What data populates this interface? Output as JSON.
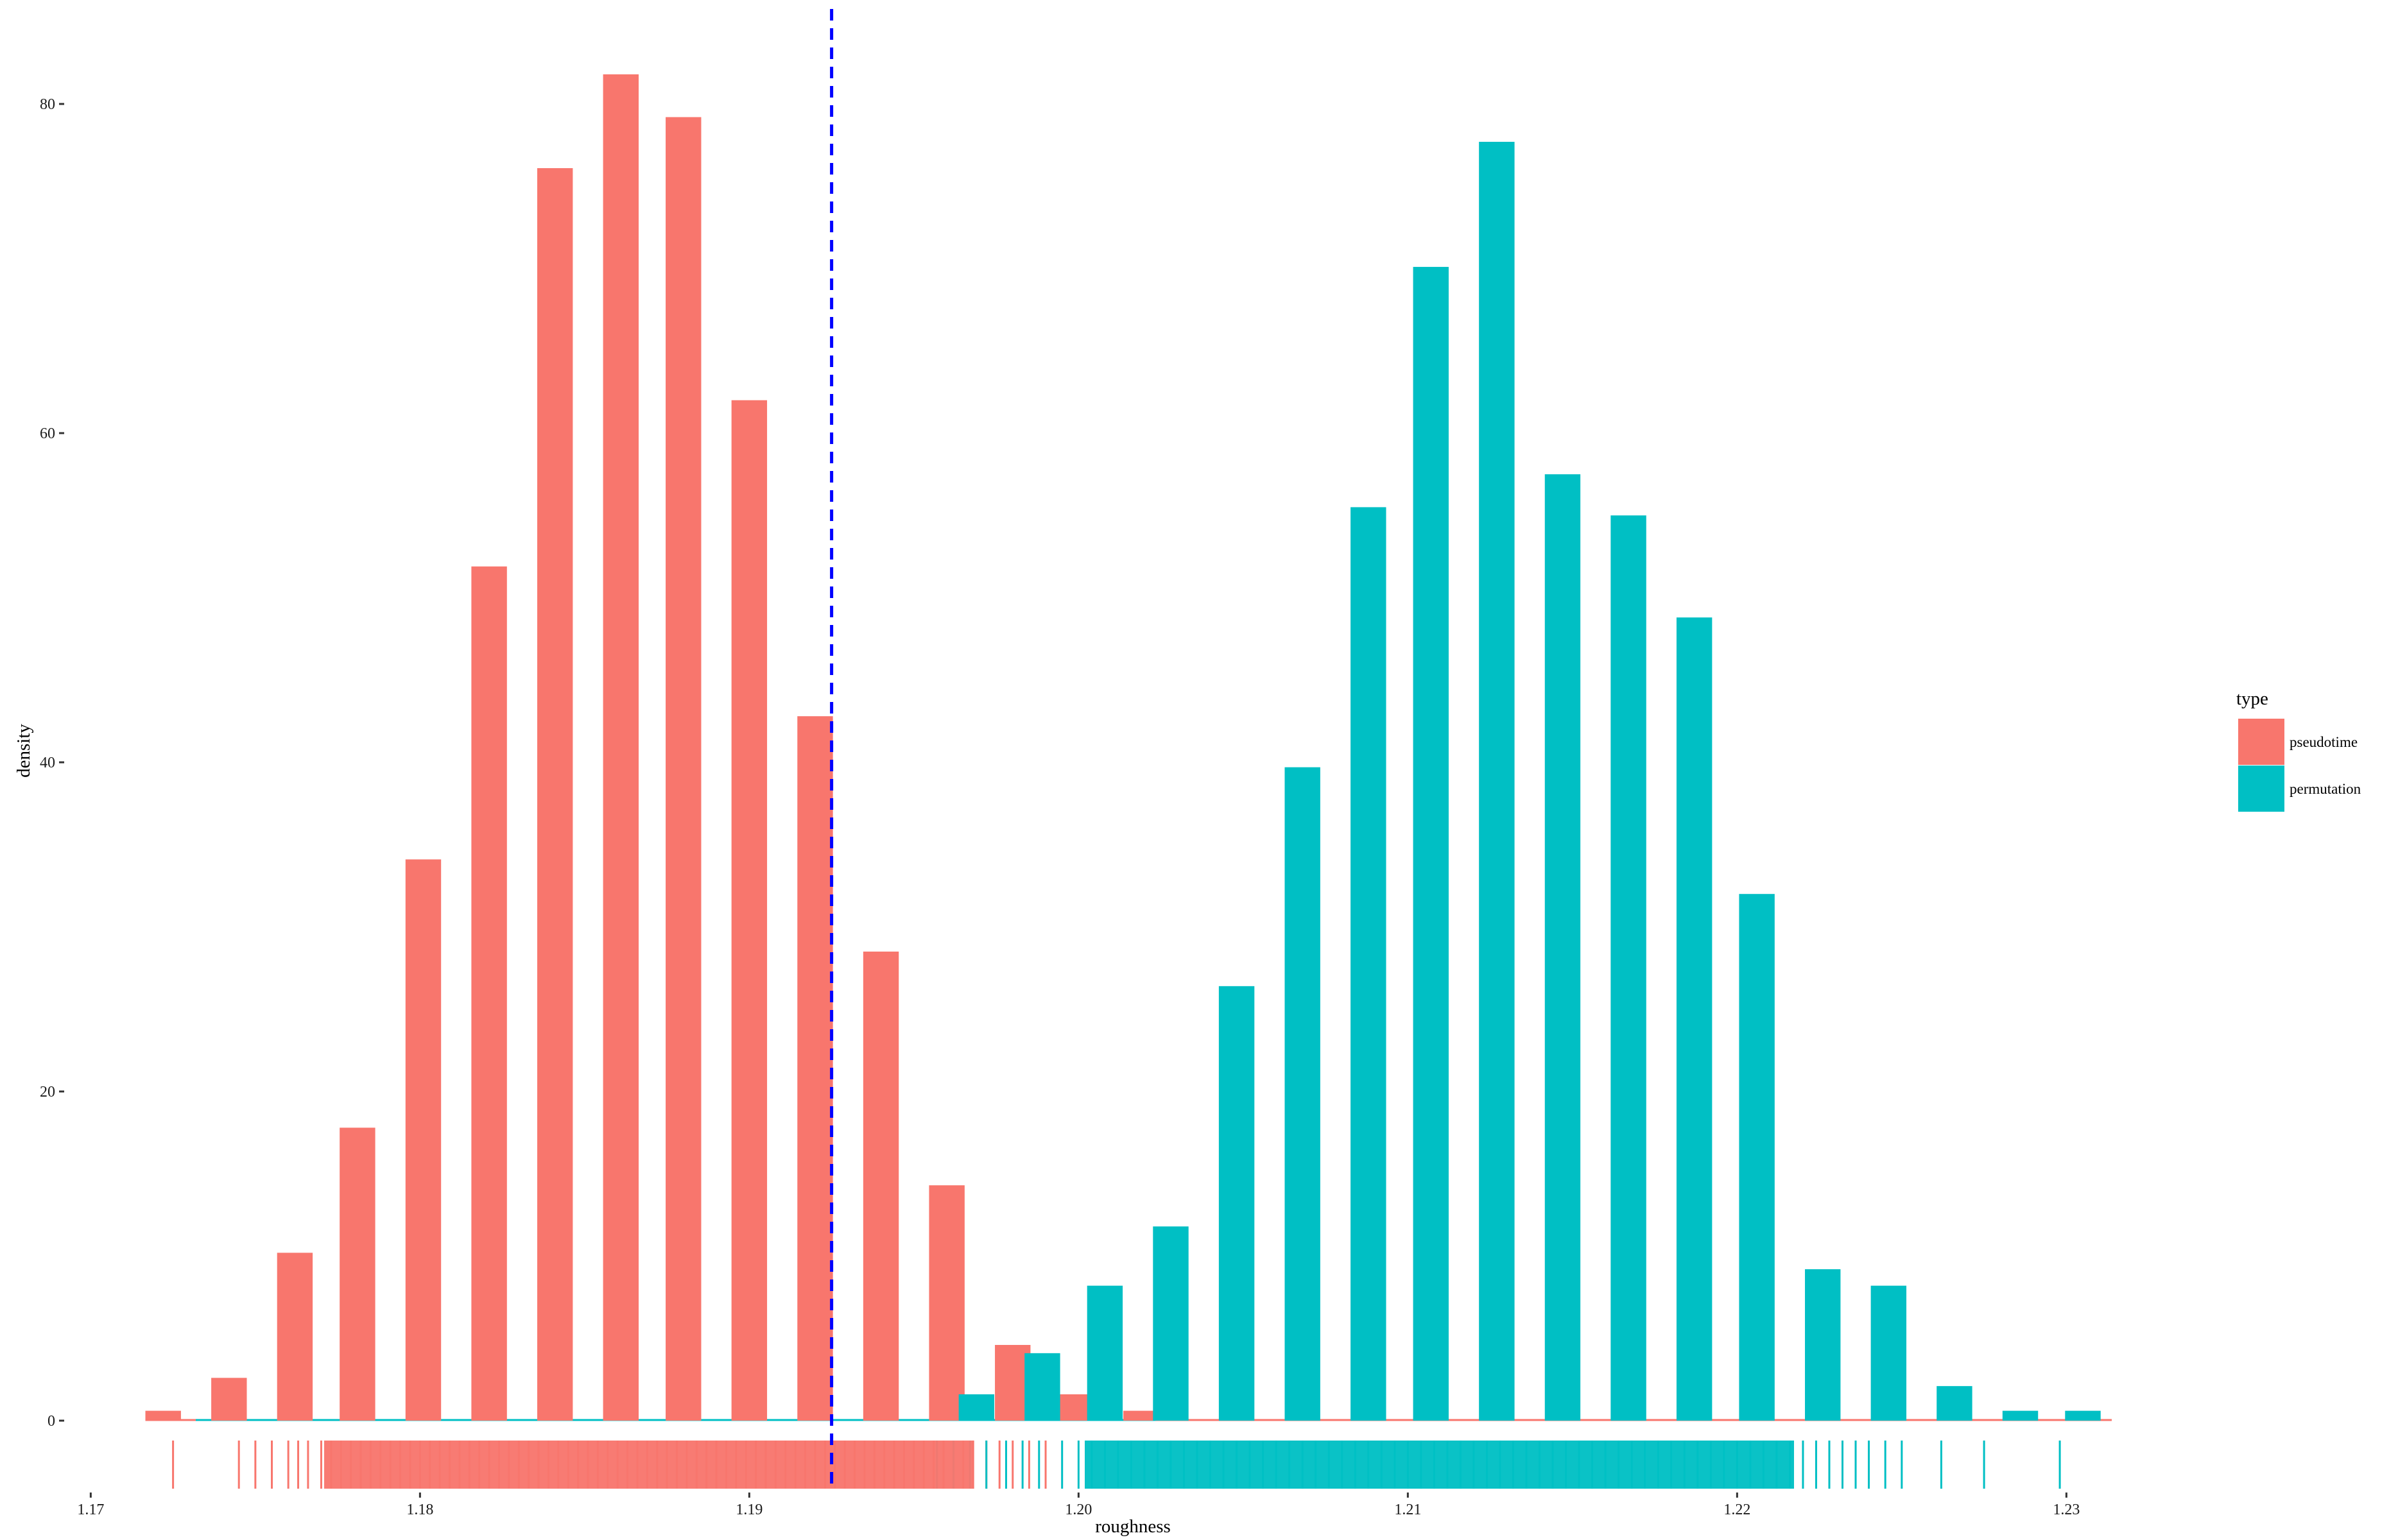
{
  "chart_data": {
    "type": "bar",
    "title": "",
    "xlabel": "roughness",
    "ylabel": "density",
    "xlim": [
      1.1705,
      1.2305
    ],
    "ylim": [
      -5,
      86
    ],
    "x_ticks": [
      1.17,
      1.18,
      1.19,
      1.2,
      1.21,
      1.22,
      1.23
    ],
    "x_tick_labels": [
      "1.17",
      "1.18",
      "1.19",
      "1.20",
      "1.21",
      "1.22",
      "1.23"
    ],
    "y_ticks": [
      0,
      20,
      40,
      60,
      80
    ],
    "y_tick_labels": [
      "0",
      "20",
      "40",
      "60",
      "80"
    ],
    "grid": false,
    "bar_width": 0.00108,
    "reference_line": {
      "x": 1.1925,
      "color": "#0000ff",
      "style": "dashed"
    },
    "legend": {
      "title": "type",
      "position": "right",
      "entries": [
        {
          "label": "pseudotime",
          "color": "#f8766d"
        },
        {
          "label": "permutation",
          "color": "#00bfc4"
        }
      ]
    },
    "series": [
      {
        "name": "pseudotime",
        "color": "#f8766d",
        "x": [
          1.1722,
          1.1742,
          1.1762,
          1.1781,
          1.1801,
          1.1821,
          1.1841,
          1.1861,
          1.188,
          1.19,
          1.192,
          1.194,
          1.196,
          1.198,
          1.1999,
          1.2019
        ],
        "values": [
          0.6,
          2.6,
          10.2,
          17.8,
          34.1,
          51.9,
          76.1,
          81.8,
          79.2,
          62.0,
          42.8,
          28.5,
          14.3,
          4.6,
          1.6,
          0.6
        ]
      },
      {
        "name": "permutation",
        "color": "#00bfc4",
        "x": [
          1.1969,
          1.1989,
          1.2008,
          1.2028,
          1.2048,
          1.2068,
          1.2088,
          1.2107,
          1.2127,
          1.2147,
          1.2167,
          1.2187,
          1.2206,
          1.2226,
          1.2246,
          1.2266,
          1.2286,
          1.2305
        ],
        "values": [
          1.6,
          4.1,
          8.2,
          11.8,
          26.4,
          39.7,
          55.5,
          70.1,
          77.7,
          57.5,
          55.0,
          48.8,
          32.0,
          9.2,
          8.2,
          2.1,
          0.6,
          0.6
        ]
      }
    ],
    "rug": [
      {
        "name": "pseudotime",
        "color": "#f8766d",
        "x": [
          1.1725,
          1.1745,
          1.175,
          1.1755,
          1.176,
          1.1763,
          1.1766,
          1.177,
          1.1773,
          1.1776,
          1.1779,
          1.1782,
          1.1785,
          1.1788,
          1.1791,
          1.1794,
          1.1797,
          1.18,
          1.1803,
          1.1806,
          1.1809,
          1.1812,
          1.1815,
          1.1818,
          1.1821,
          1.1824,
          1.1827,
          1.183,
          1.1833,
          1.1836,
          1.1839,
          1.1842,
          1.1845,
          1.1848,
          1.1851,
          1.1854,
          1.1857,
          1.186,
          1.1863,
          1.1866,
          1.1869,
          1.1872,
          1.1875,
          1.1878,
          1.1881,
          1.1884,
          1.1887,
          1.189,
          1.1893,
          1.1896,
          1.1899,
          1.1902,
          1.1905,
          1.1908,
          1.1911,
          1.1914,
          1.1917,
          1.192,
          1.1923,
          1.1926,
          1.1929,
          1.1932,
          1.1935,
          1.1938,
          1.1941,
          1.1944,
          1.1947,
          1.195,
          1.1953,
          1.1956,
          1.1959,
          1.1962,
          1.1965,
          1.1968,
          1.1972,
          1.1976,
          1.198,
          1.1985,
          1.199
        ]
      },
      {
        "name": "permutation",
        "color": "#00bfc4",
        "x": [
          1.1957,
          1.1962,
          1.1967,
          1.1972,
          1.1978,
          1.1983,
          1.1988,
          1.1995,
          1.2,
          1.2004,
          1.2008,
          1.2012,
          1.2016,
          1.202,
          1.2024,
          1.2028,
          1.2032,
          1.2036,
          1.204,
          1.2044,
          1.2048,
          1.2052,
          1.2056,
          1.206,
          1.2064,
          1.2068,
          1.2072,
          1.2076,
          1.208,
          1.2084,
          1.2088,
          1.2092,
          1.2096,
          1.21,
          1.2104,
          1.2108,
          1.2112,
          1.2116,
          1.212,
          1.2124,
          1.2128,
          1.2132,
          1.2136,
          1.214,
          1.2144,
          1.2148,
          1.2152,
          1.2156,
          1.216,
          1.2164,
          1.2168,
          1.2172,
          1.2176,
          1.218,
          1.2184,
          1.2188,
          1.2192,
          1.2196,
          1.22,
          1.2204,
          1.2208,
          1.2212,
          1.2216,
          1.222,
          1.2224,
          1.2228,
          1.2232,
          1.2236,
          1.224,
          1.2245,
          1.225,
          1.2262,
          1.2275,
          1.2298
        ]
      }
    ]
  }
}
